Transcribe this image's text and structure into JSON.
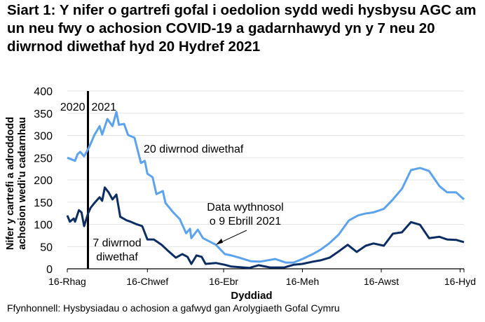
{
  "title": "Siart 1: Y nifer o gartrefi gofal i oedolion sydd wedi hysbysu AGC am un neu fwy o achosion COVID-19 a gadarnhawyd yn y 7 neu 20 diwrnod diwethaf hyd 20 Hydref 2021",
  "source": "Ffynhonnell: Hysbysiadau o achosion a gafwyd gan Arolygiaeth Gofal Cymru",
  "chart_data": {
    "type": "line",
    "xlabel": "Dyddiad",
    "ylabel_lines": [
      "Nifer y cartrefi a adroddodd",
      "achosion wedi'u cadarnhau"
    ],
    "ylim": [
      0,
      400
    ],
    "yticks": [
      0,
      50,
      100,
      150,
      200,
      250,
      300,
      350,
      400
    ],
    "xlim": [
      "2020-12-16",
      "2021-10-19"
    ],
    "xticks": [
      {
        "date": "2020-12-16",
        "label": "16-Rhag"
      },
      {
        "date": "2021-02-16",
        "label": "16-Chwef"
      },
      {
        "date": "2021-04-16",
        "label": "16-Ebr"
      },
      {
        "date": "2021-06-16",
        "label": "16-Meh"
      },
      {
        "date": "2021-08-16",
        "label": "16-Awst"
      },
      {
        "date": "2021-10-16",
        "label": "16-Hyd"
      }
    ],
    "grid": "horizontal",
    "year_marker": {
      "date": "2021-01-01",
      "left_label": "2020",
      "right_label": "2021"
    },
    "annotation": {
      "lines": [
        "Data wythnosol",
        "o 9 Ebrill 2021"
      ],
      "date": "2021-04-10",
      "value": 54
    },
    "series": [
      {
        "name": "20 diwrnod diwethaf",
        "color": "#5ba3ee",
        "label_lines": [
          "20 diwrnod diwethaf"
        ],
        "points": [
          [
            "2020-12-16",
            250
          ],
          [
            "2020-12-22",
            243
          ],
          [
            "2020-12-24",
            258
          ],
          [
            "2020-12-26",
            263
          ],
          [
            "2020-12-29",
            253
          ],
          [
            "2021-01-02",
            274
          ],
          [
            "2021-01-06",
            301
          ],
          [
            "2021-01-10",
            321
          ],
          [
            "2021-01-12",
            302
          ],
          [
            "2021-01-16",
            337
          ],
          [
            "2021-01-20",
            321
          ],
          [
            "2021-01-23",
            353
          ],
          [
            "2021-01-25",
            324
          ],
          [
            "2021-01-29",
            326
          ],
          [
            "2021-02-01",
            301
          ],
          [
            "2021-02-06",
            295
          ],
          [
            "2021-02-11",
            238
          ],
          [
            "2021-02-14",
            243
          ],
          [
            "2021-02-16",
            214
          ],
          [
            "2021-02-20",
            206
          ],
          [
            "2021-02-23",
            168
          ],
          [
            "2021-02-28",
            175
          ],
          [
            "2021-03-02",
            148
          ],
          [
            "2021-03-08",
            127
          ],
          [
            "2021-03-13",
            112
          ],
          [
            "2021-03-18",
            80
          ],
          [
            "2021-03-21",
            90
          ],
          [
            "2021-03-22",
            69
          ],
          [
            "2021-03-27",
            88
          ],
          [
            "2021-03-31",
            69
          ],
          [
            "2021-04-10",
            54
          ],
          [
            "2021-04-17",
            33
          ],
          [
            "2021-04-22",
            30
          ],
          [
            "2021-04-28",
            25
          ],
          [
            "2021-05-07",
            17
          ],
          [
            "2021-05-14",
            16
          ],
          [
            "2021-05-26",
            22
          ],
          [
            "2021-06-03",
            14
          ],
          [
            "2021-06-09",
            14
          ],
          [
            "2021-06-16",
            22
          ],
          [
            "2021-06-24",
            33
          ],
          [
            "2021-06-30",
            43
          ],
          [
            "2021-07-07",
            58
          ],
          [
            "2021-07-14",
            77
          ],
          [
            "2021-07-22",
            109
          ],
          [
            "2021-07-29",
            120
          ],
          [
            "2021-08-03",
            124
          ],
          [
            "2021-08-10",
            127
          ],
          [
            "2021-08-18",
            135
          ],
          [
            "2021-08-25",
            156
          ],
          [
            "2021-09-01",
            180
          ],
          [
            "2021-09-08",
            222
          ],
          [
            "2021-09-15",
            227
          ],
          [
            "2021-09-22",
            220
          ],
          [
            "2021-09-30",
            186
          ],
          [
            "2021-10-06",
            172
          ],
          [
            "2021-10-13",
            172
          ],
          [
            "2021-10-19",
            156
          ]
        ]
      },
      {
        "name": "7 diwrnod diwethaf",
        "color": "#0c2d63",
        "label_lines": [
          "7 diwrnod",
          "diwethaf"
        ],
        "points": [
          [
            "2020-12-16",
            120
          ],
          [
            "2020-12-18",
            106
          ],
          [
            "2020-12-21",
            113
          ],
          [
            "2020-12-22",
            106
          ],
          [
            "2020-12-25",
            132
          ],
          [
            "2020-12-27",
            127
          ],
          [
            "2020-12-29",
            96
          ],
          [
            "2021-01-01",
            124
          ],
          [
            "2021-01-03",
            137
          ],
          [
            "2021-01-06",
            148
          ],
          [
            "2021-01-10",
            161
          ],
          [
            "2021-01-12",
            153
          ],
          [
            "2021-01-14",
            183
          ],
          [
            "2021-01-17",
            172
          ],
          [
            "2021-01-20",
            156
          ],
          [
            "2021-01-23",
            167
          ],
          [
            "2021-01-26",
            117
          ],
          [
            "2021-01-31",
            109
          ],
          [
            "2021-02-03",
            106
          ],
          [
            "2021-02-07",
            101
          ],
          [
            "2021-02-12",
            96
          ],
          [
            "2021-02-16",
            66
          ],
          [
            "2021-02-21",
            66
          ],
          [
            "2021-02-27",
            54
          ],
          [
            "2021-03-03",
            43
          ],
          [
            "2021-03-10",
            25
          ],
          [
            "2021-03-15",
            33
          ],
          [
            "2021-03-19",
            27
          ],
          [
            "2021-03-22",
            11
          ],
          [
            "2021-03-26",
            30
          ],
          [
            "2021-03-30",
            27
          ],
          [
            "2021-04-02",
            11
          ],
          [
            "2021-04-10",
            13
          ],
          [
            "2021-04-17",
            9
          ],
          [
            "2021-04-22",
            5
          ],
          [
            "2021-05-06",
            2
          ],
          [
            "2021-05-13",
            8
          ],
          [
            "2021-05-22",
            3
          ],
          [
            "2021-06-02",
            3
          ],
          [
            "2021-06-09",
            9
          ],
          [
            "2021-06-16",
            11
          ],
          [
            "2021-06-24",
            16
          ],
          [
            "2021-06-30",
            19
          ],
          [
            "2021-07-07",
            25
          ],
          [
            "2021-07-14",
            39
          ],
          [
            "2021-07-21",
            54
          ],
          [
            "2021-07-28",
            38
          ],
          [
            "2021-08-04",
            52
          ],
          [
            "2021-08-10",
            57
          ],
          [
            "2021-08-18",
            52
          ],
          [
            "2021-08-25",
            79
          ],
          [
            "2021-09-01",
            82
          ],
          [
            "2021-09-08",
            105
          ],
          [
            "2021-09-15",
            99
          ],
          [
            "2021-09-22",
            69
          ],
          [
            "2021-09-30",
            72
          ],
          [
            "2021-10-06",
            66
          ],
          [
            "2021-10-13",
            65
          ],
          [
            "2021-10-19",
            60
          ]
        ]
      }
    ]
  }
}
